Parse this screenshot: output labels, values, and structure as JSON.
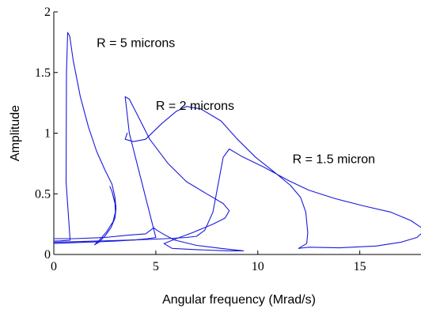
{
  "chart_data": {
    "type": "line",
    "xlabel": "Angular frequency (Mrad/s)",
    "ylabel": "Amplitude",
    "xlim": [
      0,
      18
    ],
    "ylim": [
      0,
      2
    ],
    "xticks": [
      {
        "value": 0,
        "label": "0"
      },
      {
        "value": 5,
        "label": "5"
      },
      {
        "value": 10,
        "label": "10"
      },
      {
        "value": 15,
        "label": "15"
      }
    ],
    "yticks": [
      {
        "value": 0,
        "label": "0"
      },
      {
        "value": 0.5,
        "label": "0.5"
      },
      {
        "value": 1,
        "label": "1"
      },
      {
        "value": 1.5,
        "label": "1.5"
      },
      {
        "value": 2,
        "label": "2"
      }
    ],
    "grid": false,
    "color": "#1a1adb",
    "annotations": [
      {
        "text": "R = 5 microns",
        "x": 2.1,
        "y": 1.75
      },
      {
        "text": "R = 2 microns",
        "x": 5.0,
        "y": 1.23
      },
      {
        "text": "R = 1.5 micron",
        "x": 11.7,
        "y": 0.79
      }
    ],
    "series": [
      {
        "points": [
          [
            -0.1,
            0.11
          ],
          [
            0.3,
            0.112
          ],
          [
            0.6,
            0.115
          ],
          [
            0.8,
            0.117
          ],
          [
            0.6,
            0.6
          ],
          [
            0.62,
            1.5
          ],
          [
            0.68,
            1.83
          ],
          [
            0.78,
            1.8
          ],
          [
            0.95,
            1.6
          ],
          [
            1.3,
            1.3
          ],
          [
            1.7,
            1.05
          ],
          [
            2.1,
            0.85
          ],
          [
            2.5,
            0.7
          ],
          [
            2.85,
            0.58
          ],
          [
            3.0,
            0.47
          ],
          [
            3.05,
            0.38
          ],
          [
            3.0,
            0.3
          ],
          [
            2.8,
            0.22
          ],
          [
            2.5,
            0.15
          ],
          [
            2.2,
            0.1
          ],
          [
            2.0,
            0.08
          ],
          [
            2.3,
            0.13
          ],
          [
            2.6,
            0.19
          ],
          [
            2.9,
            0.27
          ],
          [
            3.02,
            0.35
          ],
          [
            3.0,
            0.42
          ],
          [
            2.85,
            0.52
          ],
          [
            2.75,
            0.56
          ],
          [
            2.85,
            0.52
          ],
          [
            3.05,
            0.4
          ]
        ]
      },
      {
        "points": [
          [
            -0.1,
            0.09
          ],
          [
            1.5,
            0.1
          ],
          [
            3.0,
            0.11
          ],
          [
            4.0,
            0.12
          ],
          [
            4.6,
            0.13
          ],
          [
            5.0,
            0.14
          ],
          [
            3.7,
            1.0
          ],
          [
            3.5,
            1.3
          ],
          [
            3.7,
            1.28
          ],
          [
            4.1,
            1.15
          ],
          [
            4.7,
            0.95
          ],
          [
            5.6,
            0.75
          ],
          [
            6.5,
            0.6
          ],
          [
            7.5,
            0.5
          ],
          [
            8.3,
            0.42
          ],
          [
            8.6,
            0.36
          ],
          [
            8.4,
            0.3
          ],
          [
            7.8,
            0.25
          ],
          [
            6.8,
            0.18
          ],
          [
            6.0,
            0.13
          ],
          [
            5.4,
            0.09
          ],
          [
            5.8,
            0.05
          ],
          [
            7.0,
            0.04
          ],
          [
            8.5,
            0.03
          ],
          [
            9.3,
            0.03
          ],
          [
            8.2,
            0.05
          ],
          [
            7.0,
            0.075
          ],
          [
            5.9,
            0.12
          ],
          [
            5.4,
            0.165
          ],
          [
            5.05,
            0.2
          ],
          [
            4.9,
            0.22
          ],
          [
            4.5,
            0.17
          ],
          [
            3.7,
            0.16
          ],
          [
            2.5,
            0.14
          ],
          [
            1.0,
            0.13
          ],
          [
            -0.1,
            0.13
          ]
        ]
      },
      {
        "points": [
          [
            -0.1,
            0.1
          ],
          [
            2.0,
            0.11
          ],
          [
            4.0,
            0.12
          ],
          [
            5.5,
            0.13
          ],
          [
            6.5,
            0.14
          ],
          [
            7.0,
            0.15
          ],
          [
            7.4,
            0.2
          ],
          [
            7.8,
            0.35
          ],
          [
            8.3,
            0.8
          ],
          [
            8.6,
            0.87
          ],
          [
            9.2,
            0.81
          ],
          [
            10.3,
            0.72
          ],
          [
            11.5,
            0.61
          ],
          [
            12.5,
            0.53
          ],
          [
            13.8,
            0.46
          ],
          [
            15.2,
            0.4
          ],
          [
            16.5,
            0.35
          ],
          [
            17.5,
            0.28
          ],
          [
            18.2,
            0.2
          ],
          [
            17.8,
            0.14
          ],
          [
            17.0,
            0.1
          ],
          [
            15.8,
            0.07
          ],
          [
            14.0,
            0.055
          ],
          [
            12.5,
            0.06
          ],
          [
            12.0,
            0.05
          ],
          [
            12.4,
            0.09
          ],
          [
            12.45,
            0.18
          ],
          [
            12.35,
            0.35
          ],
          [
            12.1,
            0.47
          ],
          [
            11.6,
            0.57
          ],
          [
            10.8,
            0.68
          ],
          [
            9.9,
            0.8
          ],
          [
            9.0,
            0.95
          ],
          [
            8.2,
            1.1
          ],
          [
            7.2,
            1.2
          ],
          [
            6.5,
            1.22
          ],
          [
            6.0,
            1.18
          ],
          [
            5.3,
            1.08
          ],
          [
            4.5,
            0.95
          ],
          [
            3.9,
            0.93
          ],
          [
            3.5,
            0.95
          ],
          [
            3.6,
            1.0
          ]
        ]
      }
    ]
  }
}
